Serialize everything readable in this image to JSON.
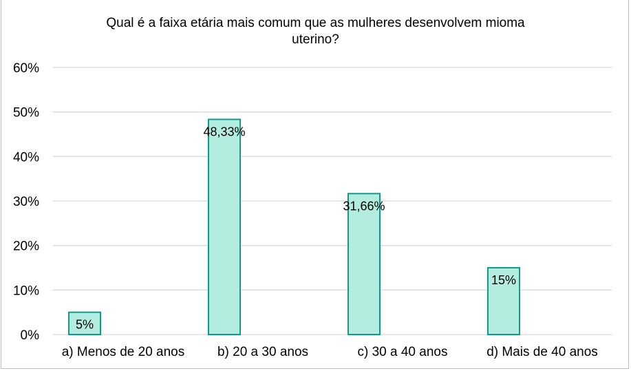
{
  "chart_data": {
    "type": "bar",
    "title_line1": "Qual é a faixa etária mais comum que as mulheres desenvolvem mioma",
    "title_line2": "uterino?",
    "categories": [
      "a) Menos de 20 anos",
      "b) 20 a 30 anos",
      "c) 30 a 40 anos",
      "d) Mais de 40 anos"
    ],
    "values": [
      5,
      48.33,
      31.66,
      15
    ],
    "data_labels": [
      "5%",
      "48,33%",
      "31,66%",
      "15%"
    ],
    "ylim": [
      0,
      60
    ],
    "yticks": [
      "0%",
      "10%",
      "20%",
      "30%",
      "40%",
      "50%",
      "60%"
    ],
    "grid": true,
    "colors": {
      "bar_fill": "#b2ede0",
      "bar_stroke": "#0f9a8e",
      "grid": "#d9d9d9"
    }
  }
}
